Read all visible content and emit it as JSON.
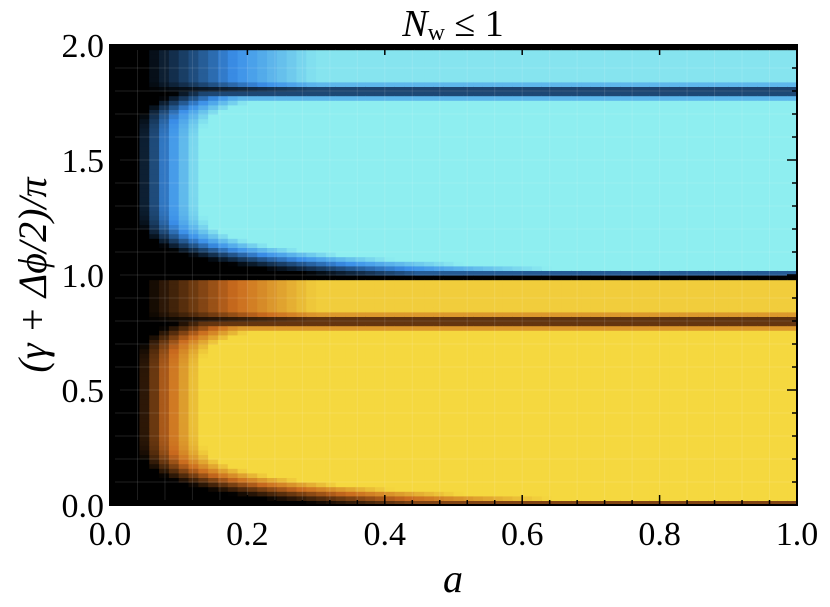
{
  "chart_data": {
    "type": "heatmap",
    "title_main": "N",
    "title_sub": "w",
    "title_rest": " ≤ 1",
    "xlabel": "a",
    "ylabel": "(γ + Δϕ/2)/π",
    "xlim": [
      0.0,
      1.0
    ],
    "ylim": [
      0.0,
      2.0
    ],
    "xticks": [
      "0.0",
      "0.2",
      "0.4",
      "0.6",
      "0.8",
      "1.0"
    ],
    "yticks": [
      "0.0",
      "0.5",
      "1.0",
      "1.5",
      "2.0"
    ],
    "grid": true,
    "colors": {
      "dark": "#000000",
      "orange": "#c96a1e",
      "yellow": "#f5d83f",
      "blue": "#3a8ee8",
      "cyan": "#8eeef0"
    },
    "bands": [
      {
        "name": "lower",
        "ymin": 0.0,
        "ymax": 1.0,
        "tint": "warm",
        "plateau_min": 0.03,
        "plateau_max": 0.75,
        "edge_a": 0.08
      },
      {
        "name": "upper",
        "ymin": 1.0,
        "ymax": 2.0,
        "tint": "cool",
        "plateau_min": 1.03,
        "plateau_max": 1.75,
        "edge_a": 0.08
      }
    ]
  }
}
